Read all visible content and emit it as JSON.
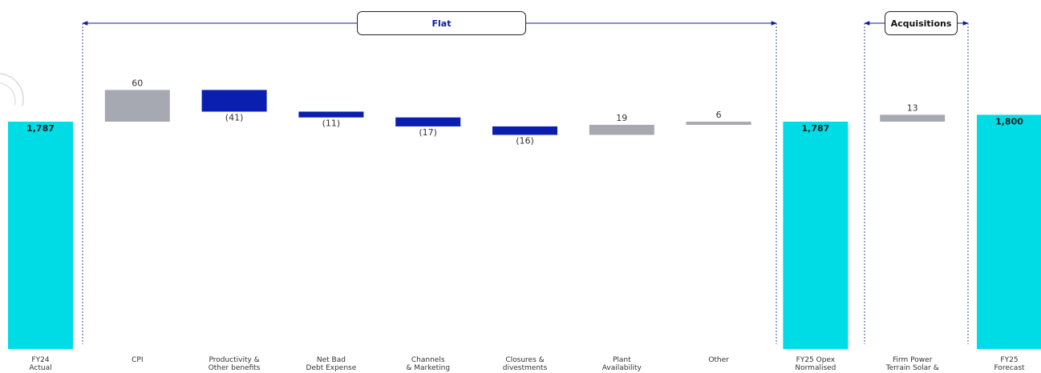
{
  "chart_data": {
    "type": "waterfall",
    "title": "",
    "xlabel": "",
    "ylabel": "",
    "ylim": [
      0,
      1800
    ],
    "grid": false,
    "categories": [
      [
        "FY24",
        "Actual"
      ],
      [
        "CPI"
      ],
      [
        "Productivity &",
        "Other benefits"
      ],
      [
        "Net Bad",
        "Debt Expense"
      ],
      [
        "Channels",
        "& Marketing"
      ],
      [
        "Closures &",
        "divestments"
      ],
      [
        "Plant",
        "Availability"
      ],
      [
        "Other"
      ],
      [
        "FY25 Opex",
        "Normalised"
      ],
      [
        "Firm Power",
        "Terrain Solar &"
      ],
      [
        "FY25",
        "Forecast"
      ]
    ],
    "steps": [
      {
        "kind": "total",
        "value": 1787,
        "label": "1,787"
      },
      {
        "kind": "increase",
        "value": 60,
        "label": "60"
      },
      {
        "kind": "decrease",
        "value": -41,
        "label": "(41)"
      },
      {
        "kind": "decrease",
        "value": -11,
        "label": "(11)"
      },
      {
        "kind": "decrease",
        "value": -17,
        "label": "(17)"
      },
      {
        "kind": "decrease",
        "value": -16,
        "label": "(16)"
      },
      {
        "kind": "increase",
        "value": 19,
        "label": "19"
      },
      {
        "kind": "increase",
        "value": 6,
        "label": "6"
      },
      {
        "kind": "total",
        "value": 1787,
        "label": "1,787"
      },
      {
        "kind": "increase",
        "value": 13,
        "label": "13"
      },
      {
        "kind": "total",
        "value": 1800,
        "label": "1,800"
      }
    ],
    "brackets": [
      {
        "label": "Flat",
        "from": 1,
        "to": 7
      },
      {
        "label": "Acquisitions",
        "from": 9,
        "to": 9
      }
    ],
    "colors": {
      "total": "#00dce6",
      "increase": "#a7a9b2",
      "decrease": "#0a1fb0",
      "bracket": "#0a1f99"
    }
  }
}
